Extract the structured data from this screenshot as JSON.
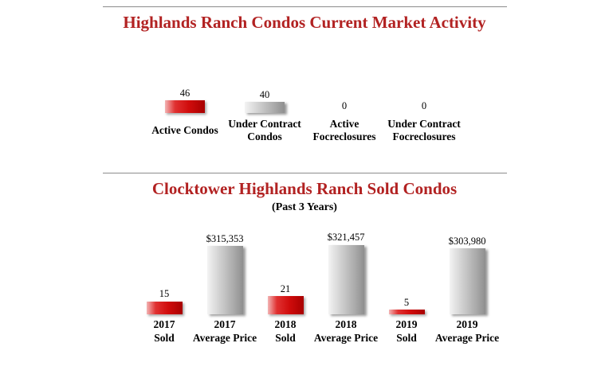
{
  "page": {
    "background": "#ffffff"
  },
  "colors": {
    "title_red": "#b22222",
    "bar_red": "#cc0000",
    "bar_gray": "#aaaaaa",
    "label_black": "#000000",
    "divider_gray": "#8c8c8c"
  },
  "chart_data": [
    {
      "type": "bar",
      "title": "Highlands Ranch Condos Current Market Activity",
      "xlabel": "",
      "ylabel": "",
      "ylim": [
        0,
        50
      ],
      "grid": false,
      "legend": "none",
      "categories": [
        "Active Condos",
        "Under Contract Condos",
        "Active Focreclosures",
        "Under Contract Focreclosures"
      ],
      "values": [
        46,
        40,
        0,
        0
      ],
      "bars": [
        {
          "category_lines": [
            "Active Condos"
          ],
          "value": 46,
          "label": "46",
          "color": "red",
          "series": "count"
        },
        {
          "category_lines": [
            "Under Contract",
            "Condos"
          ],
          "value": 40,
          "label": "40",
          "color": "gray",
          "series": "count"
        },
        {
          "category_lines": [
            "Active",
            "Focreclosures"
          ],
          "value": 0,
          "label": "0",
          "color": "none",
          "series": "count"
        },
        {
          "category_lines": [
            "Under Contract",
            "Focreclosures"
          ],
          "value": 0,
          "label": "0",
          "color": "none",
          "series": "count"
        }
      ]
    },
    {
      "type": "bar",
      "title": "Clocktower Highlands Ranch Sold Condos",
      "subtitle": "(Past 3 Years)",
      "xlabel": "",
      "ylabel": "",
      "grid": false,
      "legend": "none",
      "categories": [
        "2017 Sold",
        "2017 Average Price",
        "2018 Sold",
        "2018 Average Price",
        "2019 Sold",
        "2019 Average Price"
      ],
      "values": [
        15,
        315353,
        21,
        321457,
        5,
        303980
      ],
      "bars": [
        {
          "category_lines": [
            "2017",
            "Sold"
          ],
          "value": 15,
          "label": "15",
          "color": "red",
          "series": "sold"
        },
        {
          "category_lines": [
            "2017",
            "Average Price"
          ],
          "value": 315353,
          "label": "$315,353",
          "color": "gray",
          "series": "price"
        },
        {
          "category_lines": [
            "2018",
            "Sold"
          ],
          "value": 21,
          "label": "21",
          "color": "red",
          "series": "sold"
        },
        {
          "category_lines": [
            "2018",
            "Average Price"
          ],
          "value": 321457,
          "label": "$321,457",
          "color": "gray",
          "series": "price"
        },
        {
          "category_lines": [
            "2019",
            "Sold"
          ],
          "value": 5,
          "label": "5",
          "color": "red",
          "series": "sold"
        },
        {
          "category_lines": [
            "2019",
            "Average Price"
          ],
          "value": 303980,
          "label": "$303,980",
          "color": "gray",
          "series": "price"
        }
      ]
    }
  ]
}
